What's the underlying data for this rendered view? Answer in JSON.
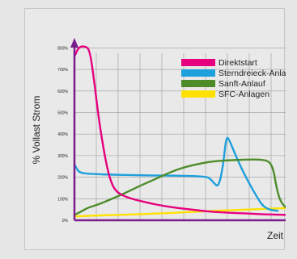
{
  "chart_data": {
    "type": "line",
    "title": "",
    "xlabel": "Zeit",
    "ylabel": "% Vollast Strom",
    "ylim": [
      0,
      850
    ],
    "yticks": [
      0,
      100,
      200,
      300,
      400,
      500,
      600,
      700,
      800
    ],
    "ytick_labels": [
      "0%",
      "100%",
      "200%",
      "300%",
      "400%",
      "500%",
      "600%",
      "700%",
      "800%"
    ],
    "xlim": [
      0,
      100
    ],
    "grid": true,
    "legend": "top-right",
    "series": [
      {
        "name": "Direktstart",
        "color": "#e6007e",
        "x": [
          0,
          2,
          5,
          7,
          9,
          11,
          13,
          15,
          17,
          19,
          22,
          26,
          30,
          35,
          40,
          47,
          55,
          62,
          70,
          78,
          85,
          90,
          96,
          100
        ],
        "y": [
          760,
          805,
          808,
          790,
          650,
          480,
          350,
          240,
          170,
          135,
          115,
          100,
          90,
          78,
          68,
          57,
          48,
          40,
          35,
          32,
          28,
          27,
          25,
          25
        ]
      },
      {
        "name": "Sterndreieck-Anlauf",
        "color": "#1ea0dc",
        "x": [
          0,
          1,
          2,
          4,
          8,
          15,
          25,
          35,
          45,
          55,
          60,
          62,
          64,
          66,
          68,
          69.5,
          71,
          73,
          76,
          80,
          84,
          86,
          88,
          90,
          92,
          93
        ],
        "y": [
          260,
          240,
          225,
          218,
          215,
          212,
          210,
          208,
          207,
          205,
          202,
          195,
          170,
          155,
          250,
          392,
          370,
          320,
          250,
          170,
          100,
          70,
          55,
          48,
          45,
          44
        ]
      },
      {
        "name": "Sanft-Anlauf",
        "color": "#4e8c2a",
        "x": [
          0,
          3,
          6,
          10,
          15,
          20,
          25,
          30,
          35,
          40,
          45,
          50,
          55,
          60,
          65,
          70,
          75,
          80,
          85,
          89,
          91,
          92.5,
          94,
          96,
          98,
          100
        ],
        "y": [
          25,
          40,
          58,
          70,
          90,
          112,
          135,
          160,
          182,
          205,
          228,
          245,
          258,
          268,
          275,
          278,
          280,
          282,
          282,
          275,
          240,
          150,
          95,
          65,
          50,
          45
        ]
      },
      {
        "name": "SFC-Anlagen",
        "color": "#ffe100",
        "x": [
          0,
          10,
          20,
          30,
          40,
          50,
          60,
          70,
          80,
          90,
          100
        ],
        "y": [
          18,
          22,
          25,
          28,
          32,
          37,
          42,
          46,
          50,
          54,
          58
        ]
      }
    ]
  }
}
